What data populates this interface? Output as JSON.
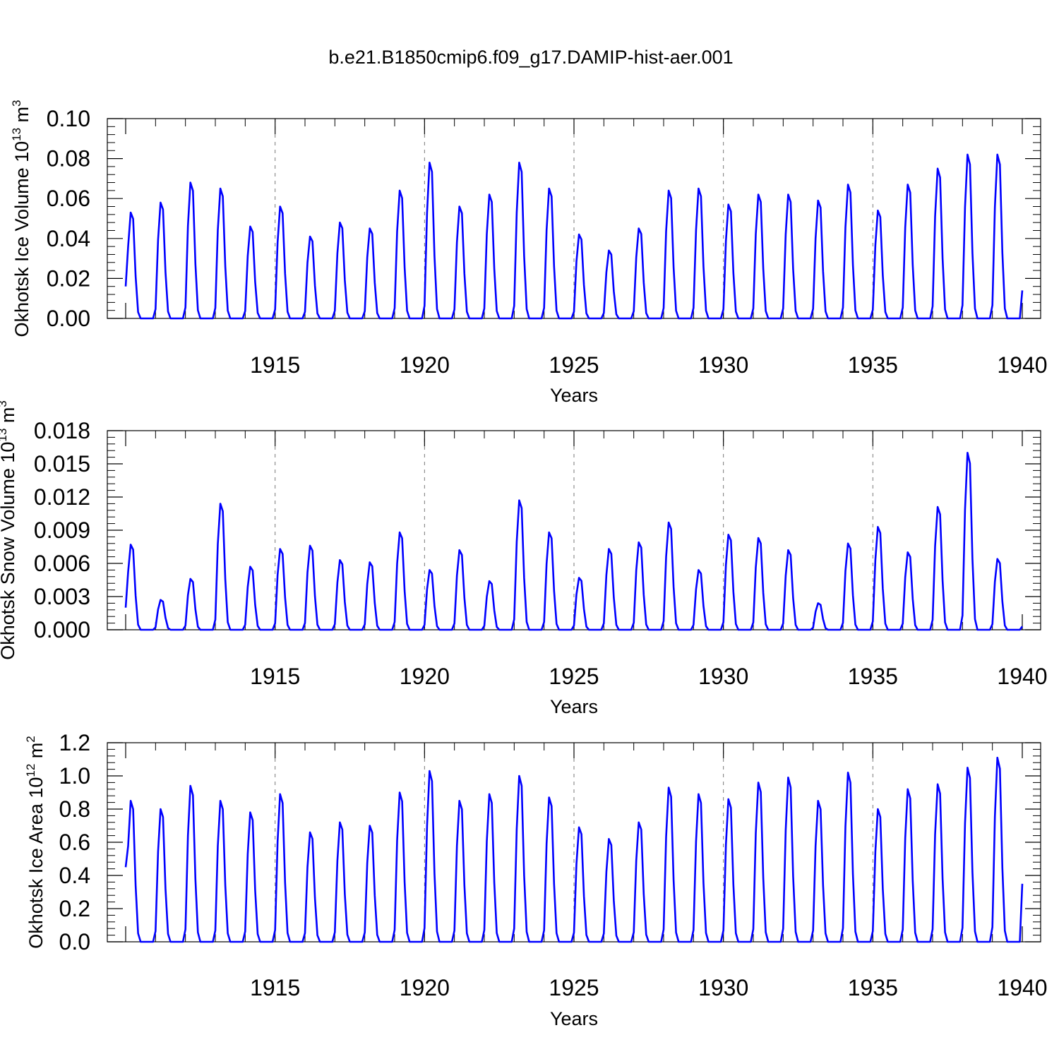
{
  "figure_title": "b.e21.B1850cmip6.f09_g17.DAMIP-hist-aer.001",
  "line_color": "#0000ff",
  "chart_data": [
    {
      "type": "line",
      "title": "b.e21.B1850cmip6.f09_g17.DAMIP-hist-aer.001",
      "xlabel": "Years",
      "ylabel": {
        "main": "Okhotsk Ice Volume 10",
        "exp": "13",
        "unit": "m",
        "unit_exp": "3"
      },
      "xlim": [
        1910,
        1940
      ],
      "ylim": [
        0,
        0.1
      ],
      "y_ticks": [
        0.0,
        0.02,
        0.04,
        0.06,
        0.08,
        0.1
      ],
      "y_tick_labels": [
        "0.00",
        "0.02",
        "0.04",
        "0.06",
        "0.08",
        "0.10"
      ],
      "x_ticks": [
        1915,
        1920,
        1925,
        1930,
        1935,
        1940
      ],
      "x_tick_labels": [
        "1915",
        "1920",
        "1925",
        "1930",
        "1935",
        "1940"
      ],
      "grid_x": [
        1915,
        1920,
        1925,
        1930,
        1935
      ],
      "series": [
        {
          "name": "Okhotsk Ice Volume",
          "annual_peaks": [
            0.053,
            0.058,
            0.068,
            0.065,
            0.046,
            0.056,
            0.041,
            0.048,
            0.045,
            0.064,
            0.078,
            0.056,
            0.062,
            0.078,
            0.065,
            0.042,
            0.034,
            0.045,
            0.064,
            0.065,
            0.057,
            0.062,
            0.062,
            0.059,
            0.067,
            0.054,
            0.067,
            0.075,
            0.082,
            0.082
          ],
          "start_value": 0.016,
          "end_value": 0.014
        }
      ]
    },
    {
      "type": "line",
      "xlabel": "Years",
      "ylabel": {
        "main": "Okhotsk Snow Volume 10",
        "exp": "13",
        "unit": "m",
        "unit_exp": "3"
      },
      "xlim": [
        1910,
        1940
      ],
      "ylim": [
        0,
        0.018
      ],
      "y_ticks": [
        0.0,
        0.003,
        0.006,
        0.009,
        0.012,
        0.015,
        0.018
      ],
      "y_tick_labels": [
        "0.000",
        "0.003",
        "0.006",
        "0.009",
        "0.012",
        "0.015",
        "0.018"
      ],
      "x_ticks": [
        1915,
        1920,
        1925,
        1930,
        1935,
        1940
      ],
      "x_tick_labels": [
        "1915",
        "1920",
        "1925",
        "1930",
        "1935",
        "1940"
      ],
      "grid_x": [
        1915,
        1920,
        1925,
        1930,
        1935
      ],
      "series": [
        {
          "name": "Okhotsk Snow Volume",
          "annual_peaks": [
            0.0077,
            0.0027,
            0.0046,
            0.0114,
            0.0057,
            0.0073,
            0.0076,
            0.0063,
            0.0061,
            0.0088,
            0.0054,
            0.0072,
            0.0044,
            0.0117,
            0.0088,
            0.0047,
            0.0073,
            0.0079,
            0.0097,
            0.0054,
            0.0086,
            0.0083,
            0.0072,
            0.0024,
            0.0078,
            0.0093,
            0.007,
            0.0111,
            0.016,
            0.0064
          ],
          "start_value": 0.002,
          "end_value": 0.0003
        }
      ]
    },
    {
      "type": "line",
      "xlabel": "Years",
      "ylabel": {
        "main": "Okhotsk Ice Area 10",
        "exp": "12",
        "unit": "m",
        "unit_exp": "2"
      },
      "xlim": [
        1910,
        1940
      ],
      "ylim": [
        0,
        1.2
      ],
      "y_ticks": [
        0.0,
        0.2,
        0.4,
        0.6,
        0.8,
        1.0,
        1.2
      ],
      "y_tick_labels": [
        "0.0",
        "0.2",
        "0.4",
        "0.6",
        "0.8",
        "1.0",
        "1.2"
      ],
      "x_ticks": [
        1915,
        1920,
        1925,
        1930,
        1935,
        1940
      ],
      "x_tick_labels": [
        "1915",
        "1920",
        "1925",
        "1930",
        "1935",
        "1940"
      ],
      "grid_x": [
        1915,
        1920,
        1925,
        1930,
        1935
      ],
      "series": [
        {
          "name": "Okhotsk Ice Area",
          "annual_peaks": [
            0.85,
            0.8,
            0.94,
            0.85,
            0.78,
            0.89,
            0.66,
            0.72,
            0.7,
            0.9,
            1.03,
            0.85,
            0.89,
            1.0,
            0.87,
            0.69,
            0.62,
            0.72,
            0.93,
            0.89,
            0.86,
            0.96,
            0.99,
            0.85,
            1.02,
            0.8,
            0.92,
            0.95,
            1.05,
            1.11
          ],
          "start_value": 0.45,
          "end_value": 0.35
        }
      ]
    }
  ]
}
